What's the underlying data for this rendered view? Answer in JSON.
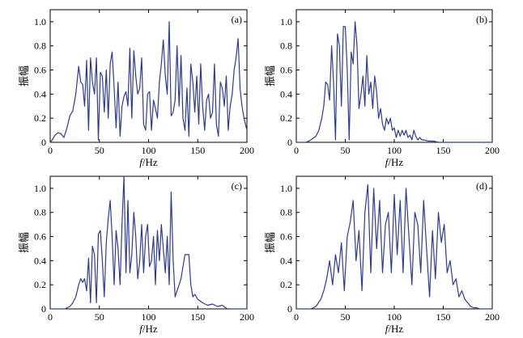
{
  "chart_data": [
    {
      "type": "line",
      "label": "(a)",
      "xlabel_italic": "f",
      "xlabel_unit": "/Hz",
      "ylabel": "振幅",
      "xlim": [
        0,
        200
      ],
      "ylim": [
        0,
        1.1
      ],
      "xticks": [
        0,
        50,
        100,
        150,
        200
      ],
      "yticks": [
        "0",
        "0.2",
        "0.4",
        "0.6",
        "0.8",
        "1.0"
      ],
      "ytick_values": [
        0,
        0.2,
        0.4,
        0.6,
        0.8,
        1.0
      ],
      "x": [
        0,
        2,
        5,
        8,
        11,
        14,
        17,
        20,
        23,
        26,
        29,
        31,
        33,
        35,
        37,
        39,
        41,
        43,
        45,
        47,
        49,
        51,
        53,
        55,
        57,
        59,
        61,
        63,
        65,
        67,
        69,
        71,
        73,
        75,
        77,
        79,
        81,
        83,
        85,
        87,
        89,
        91,
        93,
        95,
        97,
        99,
        101,
        103,
        105,
        107,
        109,
        111,
        113,
        115,
        117,
        119,
        121,
        123,
        125,
        127,
        129,
        131,
        133,
        135,
        137,
        139,
        141,
        143,
        145,
        147,
        149,
        151,
        153,
        155,
        157,
        159,
        161,
        163,
        165,
        167,
        169,
        171,
        173,
        175,
        177,
        179,
        181,
        183,
        185,
        187,
        189,
        191,
        193,
        195,
        197,
        200
      ],
      "y": [
        0,
        0.02,
        0.06,
        0.08,
        0.07,
        0.04,
        0.12,
        0.22,
        0.26,
        0.4,
        0.63,
        0.5,
        0.48,
        0.3,
        0.68,
        0.1,
        0.7,
        0.5,
        0.4,
        0.7,
        0.02,
        0.58,
        0.55,
        0.25,
        0.6,
        0.2,
        0.65,
        0.75,
        0.45,
        0.12,
        0.5,
        0.05,
        0.3,
        0.38,
        0.42,
        0.3,
        0.78,
        0.2,
        0.76,
        0.55,
        0.4,
        0.45,
        0.7,
        0.15,
        0.1,
        0.4,
        0.42,
        0.1,
        0.35,
        0.28,
        0.2,
        0.5,
        0.65,
        0.85,
        0.55,
        0.4,
        1.0,
        0.22,
        0.25,
        0.35,
        0.8,
        0.3,
        0.72,
        0.2,
        0.1,
        0.45,
        0.05,
        0.65,
        0.5,
        0.25,
        0.55,
        0.15,
        0.65,
        0.3,
        0.1,
        0.35,
        0.4,
        0.2,
        0.25,
        0.65,
        0.15,
        0.05,
        0.5,
        0.45,
        0.3,
        0.55,
        0.1,
        0.3,
        0.4,
        0.6,
        0.7,
        0.86,
        0.45,
        0.3,
        0.2,
        0.1
      ]
    },
    {
      "type": "line",
      "label": "(b)",
      "xlabel_italic": "f",
      "xlabel_unit": "/Hz",
      "ylabel": "振幅",
      "xlim": [
        0,
        200
      ],
      "ylim": [
        0,
        1.1
      ],
      "xticks": [
        0,
        50,
        100,
        150,
        200
      ],
      "yticks": [
        "0",
        "0.2",
        "0.4",
        "0.6",
        "0.8",
        "1.0"
      ],
      "ytick_values": [
        0,
        0.2,
        0.4,
        0.6,
        0.8,
        1.0
      ],
      "x": [
        0,
        10,
        15,
        20,
        23,
        26,
        28,
        30,
        32,
        34,
        36,
        38,
        40,
        42,
        44,
        46,
        48,
        50,
        52,
        54,
        56,
        58,
        60,
        62,
        64,
        66,
        68,
        70,
        72,
        74,
        76,
        78,
        80,
        82,
        84,
        86,
        88,
        90,
        92,
        94,
        96,
        98,
        100,
        102,
        104,
        106,
        108,
        110,
        112,
        114,
        116,
        118,
        120,
        122,
        124,
        126,
        128,
        130,
        135,
        140,
        145,
        150,
        200
      ],
      "y": [
        0,
        0,
        0.02,
        0.05,
        0.1,
        0.2,
        0.3,
        0.5,
        0.48,
        0.35,
        0.8,
        0.5,
        0.02,
        0.9,
        0.8,
        0.3,
        0.96,
        0.96,
        0.6,
        0.02,
        0.75,
        0.65,
        1.0,
        0.8,
        0.28,
        0.4,
        0.55,
        0.3,
        0.72,
        0.4,
        0.5,
        0.28,
        0.55,
        0.42,
        0.2,
        0.28,
        0.15,
        0.1,
        0.2,
        0.15,
        0.2,
        0.1,
        0.12,
        0.04,
        0.1,
        0.05,
        0.1,
        0.06,
        0.1,
        0.04,
        0.06,
        0.02,
        0.1,
        0.05,
        0.02,
        0.04,
        0.02,
        0.02,
        0.01,
        0.01,
        0,
        0,
        0
      ]
    },
    {
      "type": "line",
      "label": "(c)",
      "xlabel_italic": "f",
      "xlabel_unit": "/Hz",
      "ylabel": "振幅",
      "xlim": [
        0,
        200
      ],
      "ylim": [
        0,
        1.1
      ],
      "xticks": [
        0,
        50,
        100,
        150,
        200
      ],
      "yticks": [
        "0",
        "0.2",
        "0.4",
        "0.6",
        "0.8",
        "1.0"
      ],
      "ytick_values": [
        0,
        0.2,
        0.4,
        0.6,
        0.8,
        1.0
      ],
      "x": [
        0,
        15,
        20,
        23,
        26,
        29,
        31,
        33,
        35,
        37,
        39,
        41,
        43,
        45,
        47,
        49,
        51,
        53,
        55,
        57,
        59,
        61,
        63,
        65,
        67,
        69,
        71,
        73,
        75,
        77,
        79,
        81,
        83,
        85,
        87,
        89,
        91,
        93,
        95,
        97,
        99,
        101,
        103,
        105,
        107,
        109,
        111,
        113,
        115,
        117,
        119,
        121,
        123,
        125,
        127,
        129,
        131,
        133,
        135,
        137,
        139,
        141,
        143,
        145,
        147,
        150,
        155,
        160,
        165,
        170,
        175,
        180,
        200
      ],
      "y": [
        0,
        0,
        0.02,
        0.05,
        0.1,
        0.2,
        0.25,
        0.22,
        0.25,
        0.15,
        0.42,
        0.05,
        0.52,
        0.45,
        0.05,
        0.62,
        0.65,
        0.4,
        0.1,
        0.55,
        0.75,
        0.9,
        0.6,
        0.2,
        0.65,
        0.5,
        0.2,
        0.7,
        1.1,
        0.3,
        0.9,
        0.3,
        0.45,
        0.8,
        0.6,
        0.25,
        0.4,
        0.7,
        0.3,
        0.6,
        0.7,
        0.35,
        0.4,
        0.6,
        0.2,
        0.65,
        0.4,
        0.7,
        0.5,
        0.3,
        0.6,
        0.2,
        0.97,
        0.4,
        0.1,
        0.15,
        0.2,
        0.25,
        0.35,
        0.45,
        0.45,
        0.45,
        0.2,
        0.1,
        0.12,
        0.08,
        0.05,
        0.03,
        0.04,
        0.02,
        0.03,
        0,
        0
      ]
    },
    {
      "type": "line",
      "label": "(d)",
      "xlabel_italic": "f",
      "xlabel_unit": "/Hz",
      "ylabel": "振幅",
      "xlim": [
        0,
        200
      ],
      "ylim": [
        0,
        1.1
      ],
      "xticks": [
        0,
        50,
        100,
        150,
        200
      ],
      "yticks": [
        "0",
        "0.2",
        "0.4",
        "0.6",
        "0.8",
        "1.0"
      ],
      "ytick_values": [
        0,
        0.2,
        0.4,
        0.6,
        0.8,
        1.0
      ],
      "x": [
        0,
        15,
        20,
        25,
        28,
        31,
        34,
        37,
        40,
        43,
        46,
        49,
        52,
        55,
        58,
        61,
        64,
        67,
        70,
        73,
        76,
        79,
        82,
        85,
        88,
        91,
        94,
        97,
        100,
        103,
        106,
        109,
        112,
        115,
        118,
        121,
        124,
        127,
        130,
        133,
        136,
        139,
        142,
        145,
        148,
        151,
        154,
        157,
        160,
        163,
        166,
        169,
        172,
        175,
        178,
        181,
        184,
        187,
        190,
        200
      ],
      "y": [
        0,
        0,
        0.02,
        0.08,
        0.15,
        0.25,
        0.4,
        0.2,
        0.45,
        0.3,
        0.55,
        0.15,
        0.6,
        0.72,
        0.9,
        0.4,
        0.65,
        0.15,
        0.8,
        1.03,
        0.3,
        1.0,
        0.5,
        0.9,
        0.3,
        0.7,
        0.8,
        0.3,
        0.95,
        0.45,
        0.9,
        0.3,
        1.0,
        0.6,
        0.2,
        0.8,
        0.7,
        0.3,
        0.9,
        0.5,
        0.1,
        0.65,
        0.25,
        0.8,
        0.55,
        0.7,
        0.3,
        0.4,
        0.2,
        0.25,
        0.1,
        0.15,
        0.08,
        0.05,
        0.02,
        0.01,
        0.01,
        0,
        0,
        0
      ]
    }
  ]
}
